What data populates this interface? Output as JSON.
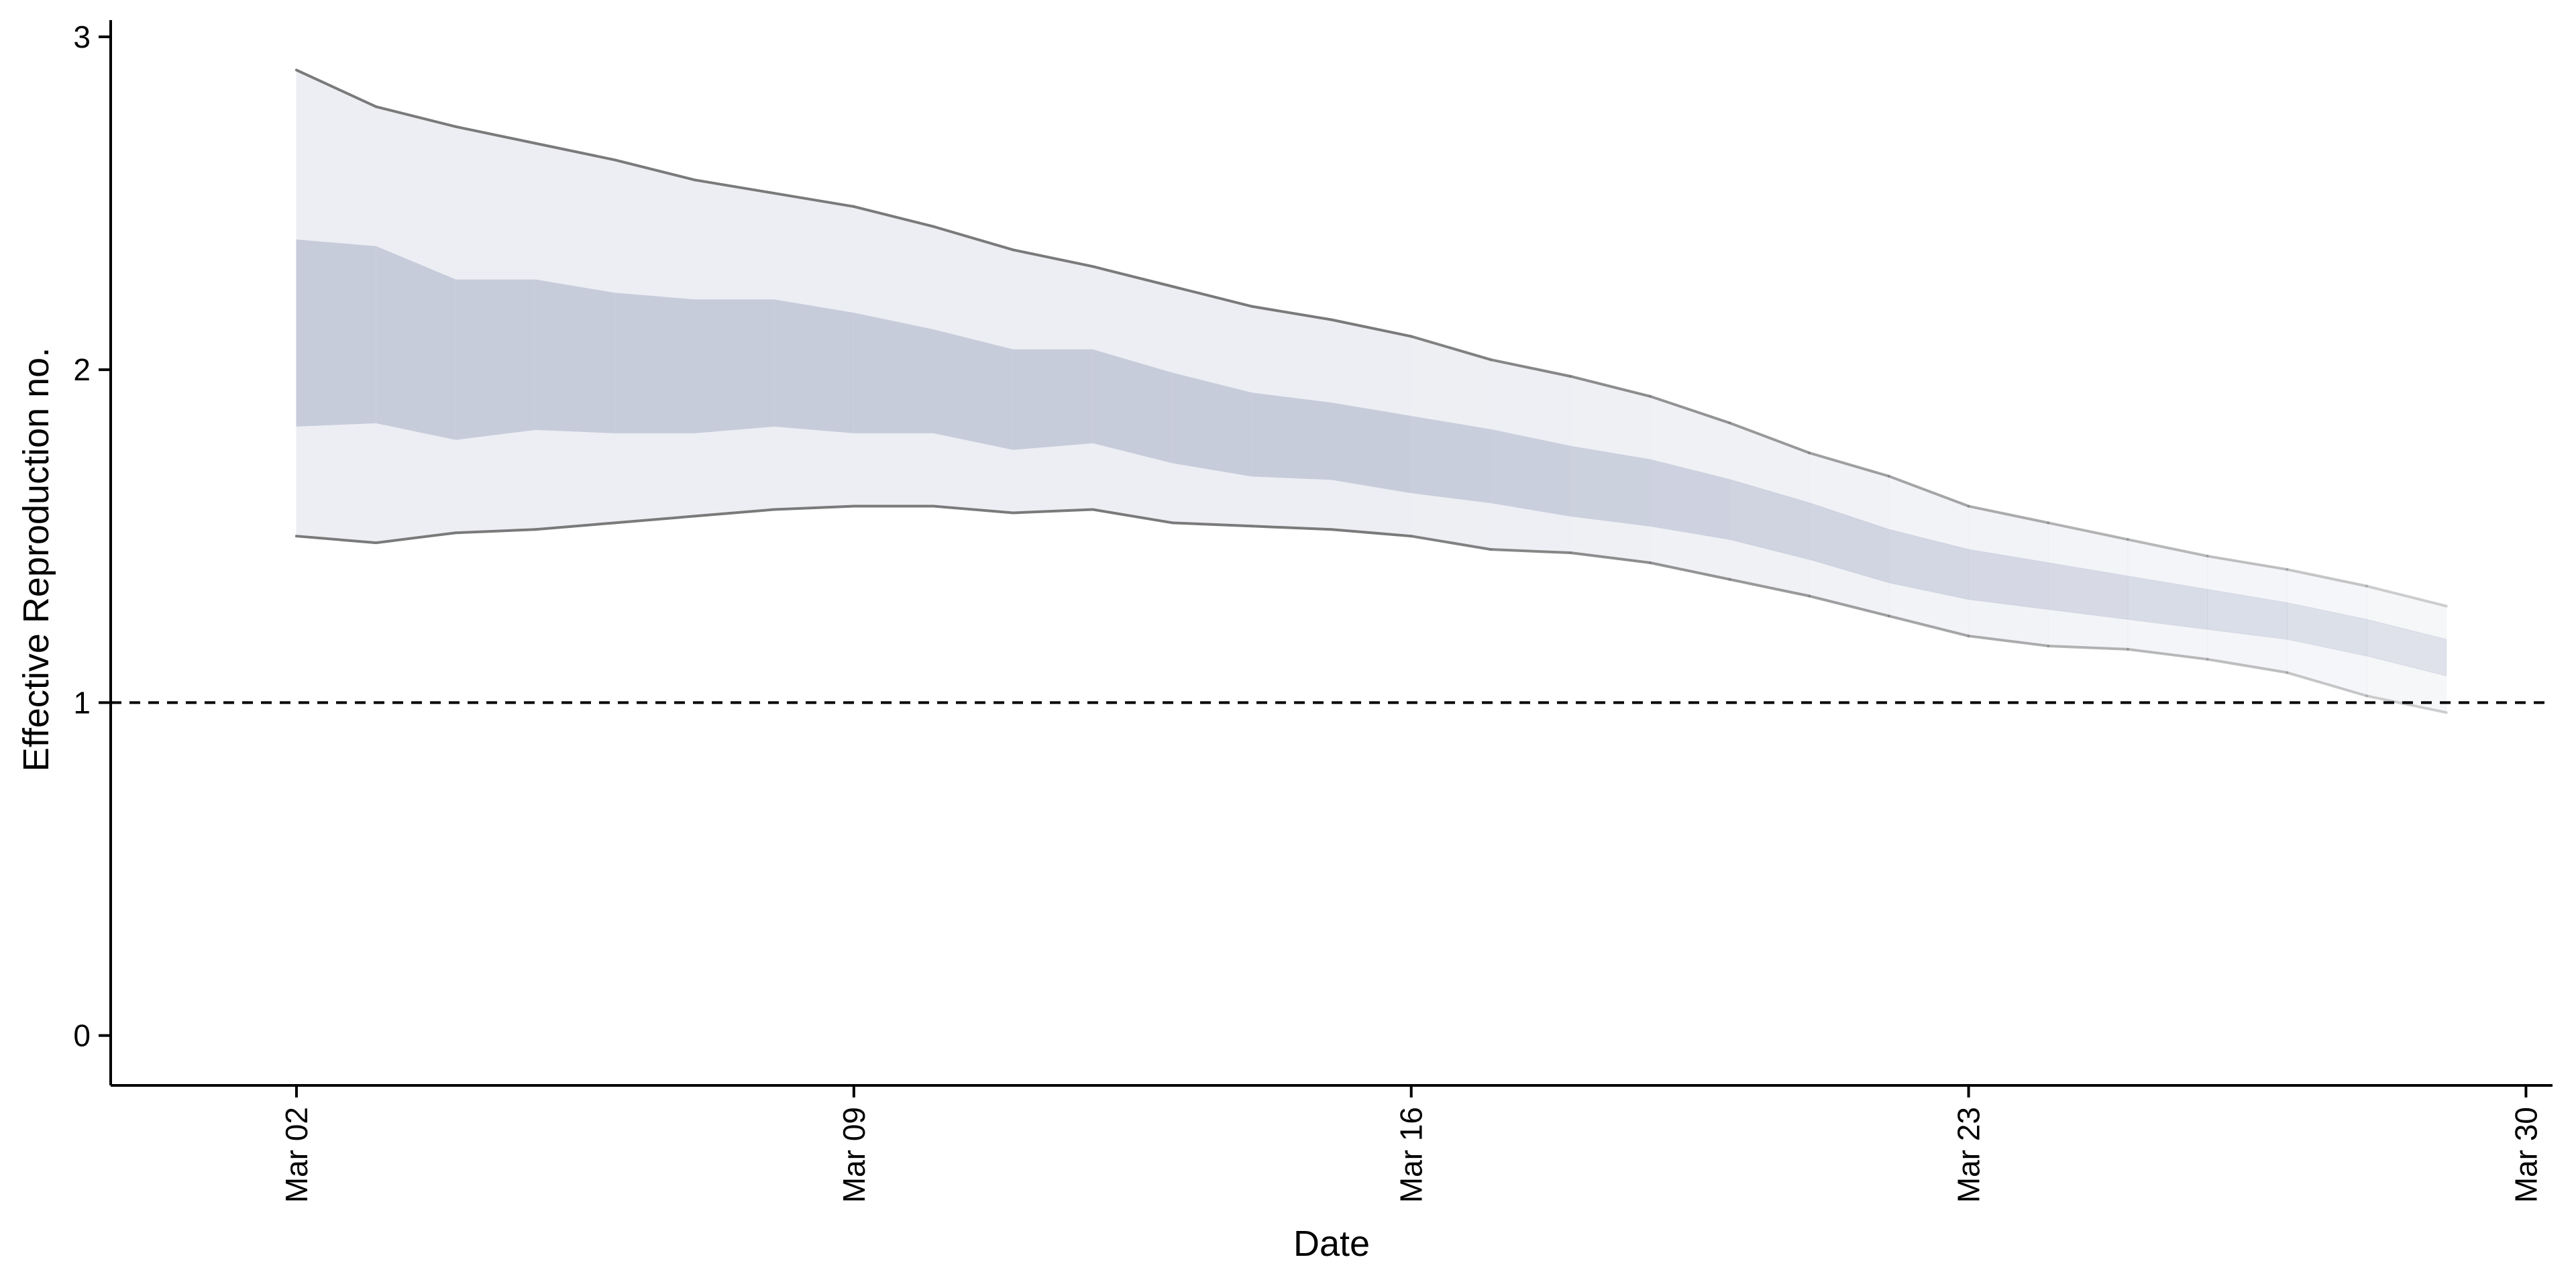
{
  "chart_data": {
    "type": "area",
    "title": "",
    "xlabel": "Date",
    "ylabel": "Effective Reproduction no.",
    "x_ticks": [
      "Mar 02",
      "Mar 09",
      "Mar 16",
      "Mar 23",
      "Mar 30"
    ],
    "y_ticks": [
      "0",
      "1",
      "2",
      "3"
    ],
    "xlim": [
      "2020-02-28 16:00",
      "2020-03-30 08:00"
    ],
    "ylim": [
      -0.15,
      3.05
    ],
    "grid": false,
    "legend": "none",
    "x": [
      "2020-03-02",
      "2020-03-03",
      "2020-03-04",
      "2020-03-05",
      "2020-03-06",
      "2020-03-07",
      "2020-03-08",
      "2020-03-09",
      "2020-03-10",
      "2020-03-11",
      "2020-03-12",
      "2020-03-13",
      "2020-03-14",
      "2020-03-15",
      "2020-03-16",
      "2020-03-17",
      "2020-03-18",
      "2020-03-19",
      "2020-03-20",
      "2020-03-21",
      "2020-03-22",
      "2020-03-23",
      "2020-03-24",
      "2020-03-25",
      "2020-03-26",
      "2020-03-27",
      "2020-03-28",
      "2020-03-29"
    ],
    "reference_line": {
      "y": 1,
      "style": "dashed"
    },
    "series": [
      {
        "kind": "outer-band-lower",
        "values": [
          1.5,
          1.48,
          1.51,
          1.52,
          1.54,
          1.56,
          1.58,
          1.59,
          1.59,
          1.57,
          1.58,
          1.54,
          1.53,
          1.52,
          1.5,
          1.46,
          1.45,
          1.42,
          1.37,
          1.32,
          1.26,
          1.2,
          1.17,
          1.16,
          1.13,
          1.09,
          1.02,
          0.97
        ]
      },
      {
        "kind": "outer-band-upper",
        "values": [
          2.9,
          2.79,
          2.73,
          2.68,
          2.63,
          2.57,
          2.53,
          2.49,
          2.43,
          2.36,
          2.31,
          2.25,
          2.19,
          2.15,
          2.1,
          2.03,
          1.98,
          1.92,
          1.84,
          1.75,
          1.68,
          1.59,
          1.54,
          1.49,
          1.44,
          1.4,
          1.35,
          1.29
        ]
      },
      {
        "kind": "inner-band-lower",
        "values": [
          1.83,
          1.84,
          1.79,
          1.82,
          1.81,
          1.81,
          1.83,
          1.81,
          1.81,
          1.76,
          1.78,
          1.72,
          1.68,
          1.67,
          1.63,
          1.6,
          1.56,
          1.53,
          1.49,
          1.43,
          1.36,
          1.31,
          1.28,
          1.25,
          1.22,
          1.19,
          1.14,
          1.08
        ]
      },
      {
        "kind": "inner-band-upper",
        "values": [
          2.39,
          2.37,
          2.27,
          2.27,
          2.23,
          2.21,
          2.21,
          2.17,
          2.12,
          2.06,
          2.06,
          1.99,
          1.93,
          1.9,
          1.86,
          1.82,
          1.77,
          1.73,
          1.67,
          1.6,
          1.52,
          1.46,
          1.42,
          1.38,
          1.34,
          1.3,
          1.25,
          1.19
        ]
      }
    ],
    "colors": {
      "outer_band": "#eceef3",
      "inner_band": "#c7ccdb",
      "band_edge": "#7a7a7a",
      "reference": "#000000",
      "axis": "#000000"
    }
  }
}
